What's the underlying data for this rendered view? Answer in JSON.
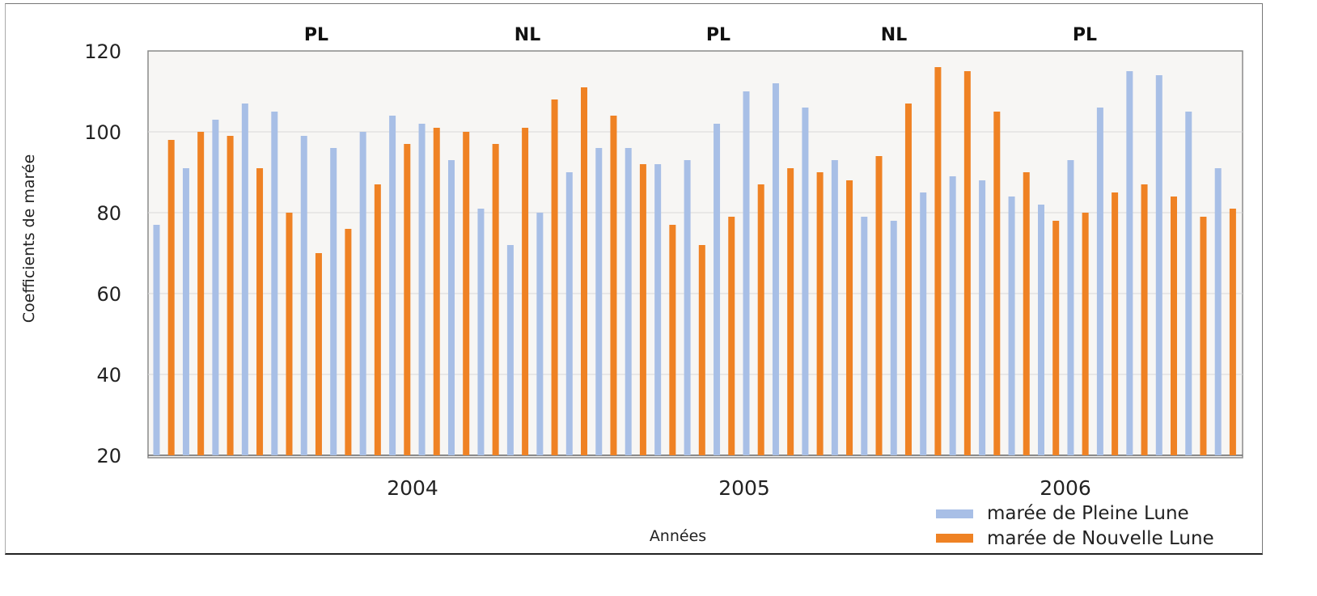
{
  "chart_data": {
    "type": "bar",
    "title": "",
    "ylabel": "Coefficients de marée",
    "xlabel": "Années",
    "ylim": [
      20,
      120
    ],
    "yticks": [
      20,
      40,
      60,
      80,
      100,
      120
    ],
    "grid": true,
    "legend_position": "bottom-right",
    "year_labels": [
      "2004",
      "2005",
      "2006"
    ],
    "phase_labels": [
      "PL",
      "NL",
      "PL",
      "NL",
      "PL"
    ],
    "colors": {
      "pleine_lune": "#a8bfe6",
      "nouvelle_lune": "#ef8224"
    },
    "series": [
      {
        "name": "marée de Pleine Lune",
        "values": [
          77,
          91,
          103,
          107,
          105,
          99,
          96,
          100,
          104,
          102,
          93,
          81,
          72,
          80,
          90,
          96,
          96,
          92,
          93,
          102,
          110,
          112,
          106,
          93,
          79,
          78,
          85,
          89,
          88,
          84,
          82,
          93,
          106,
          115,
          114,
          105,
          91
        ]
      },
      {
        "name": "marée de Nouvelle Lune",
        "values": [
          98,
          100,
          99,
          91,
          80,
          70,
          76,
          87,
          97,
          101,
          100,
          97,
          101,
          108,
          111,
          104,
          92,
          77,
          72,
          79,
          87,
          91,
          90,
          88,
          94,
          107,
          116,
          115,
          105,
          90,
          78,
          80,
          85,
          87,
          84,
          79,
          81
        ]
      }
    ]
  }
}
